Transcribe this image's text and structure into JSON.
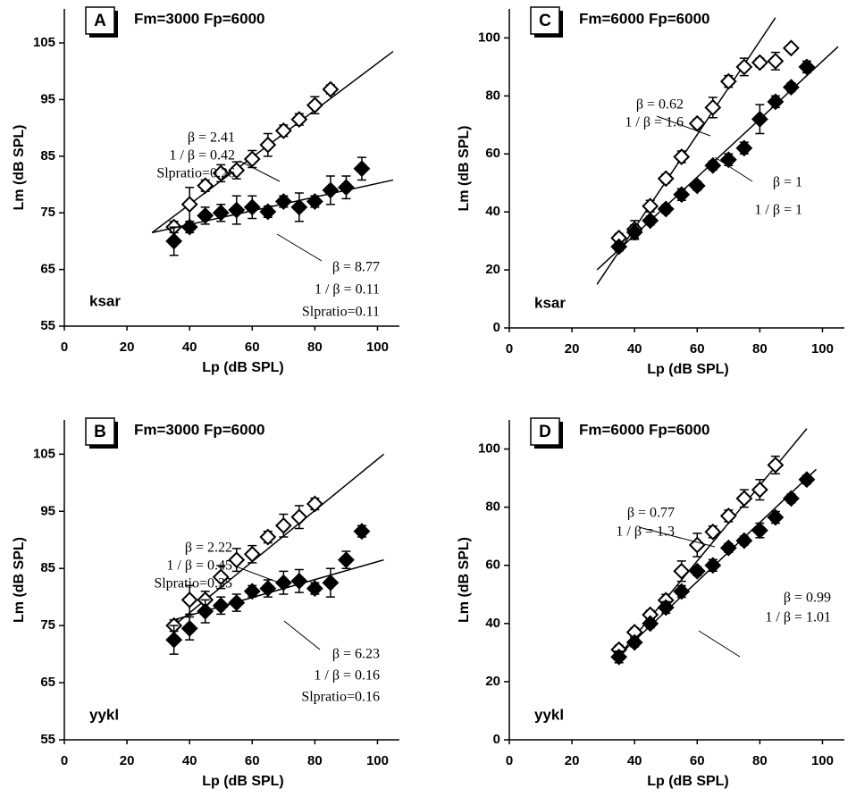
{
  "chart_data": [
    {
      "type": "scatter",
      "panel": "A",
      "title": "Fm=3000 Fp=6000",
      "subject": "ksar",
      "xlabel": "Lp (dB SPL)",
      "ylabel": "Lm (dB SPL)",
      "xlim": [
        0,
        107
      ],
      "ylim": [
        55,
        111
      ],
      "xticks": [
        0,
        20,
        40,
        60,
        80,
        100
      ],
      "yticks": [
        55,
        65,
        75,
        85,
        95,
        105
      ],
      "series": [
        {
          "color": "#000000",
          "fill": "#ffffff",
          "x": [
            35,
            40,
            45,
            50,
            55,
            60,
            65,
            70,
            75,
            80,
            85
          ],
          "values": [
            72.5,
            76.5,
            79.8,
            82,
            82.5,
            84.5,
            87,
            89.5,
            91.5,
            94,
            96.8
          ],
          "errors": [
            1,
            3,
            1,
            1.5,
            1.5,
            1.5,
            2,
            1,
            1,
            1.5,
            0.8
          ],
          "fit": {
            "x": [
              28,
              105
            ],
            "y": [
              71.5,
              103.5
            ]
          },
          "annotation": [
            "β = 2.41",
            "1 / β = 0.42",
            "Slpratio=0.26"
          ]
        },
        {
          "color": "#000000",
          "fill": "#000000",
          "x": [
            35,
            40,
            45,
            50,
            55,
            60,
            65,
            70,
            75,
            80,
            85,
            90,
            95
          ],
          "values": [
            70,
            72.5,
            74.5,
            75,
            75.5,
            76,
            75.2,
            77,
            76,
            77,
            79,
            79.5,
            82.8
          ],
          "errors": [
            2.5,
            1,
            1.5,
            1.5,
            2.5,
            2,
            1,
            1,
            2.5,
            1,
            2.5,
            2,
            2
          ],
          "fit": {
            "x": [
              28,
              105
            ],
            "y": [
              71.5,
              80.8
            ]
          },
          "annotation": [
            "β = 8.77",
            "1 / β = 0.11",
            "Slpratio=0.11"
          ]
        }
      ]
    },
    {
      "type": "scatter",
      "panel": "B",
      "title": "Fm=3000 Fp=6000",
      "subject": "yykl",
      "xlabel": "Lp (dB SPL)",
      "ylabel": "Lm (dB SPL)",
      "xlim": [
        0,
        107
      ],
      "ylim": [
        55,
        111
      ],
      "xticks": [
        0,
        20,
        40,
        60,
        80,
        100
      ],
      "yticks": [
        55,
        65,
        75,
        85,
        95,
        105
      ],
      "series": [
        {
          "color": "#000000",
          "fill": "#ffffff",
          "x": [
            35,
            40,
            45,
            50,
            55,
            60,
            65,
            70,
            75,
            80
          ],
          "values": [
            75,
            79.5,
            79.5,
            83.5,
            86.5,
            87.5,
            90.5,
            92.5,
            94,
            96.3
          ],
          "errors": [
            1,
            2.5,
            1.5,
            2,
            2,
            1.5,
            1,
            2,
            2,
            1
          ],
          "fit": {
            "x": [
              35,
              102
            ],
            "y": [
              75,
              105
            ]
          },
          "annotation": [
            "β = 2.22",
            "1 / β = 0.45",
            "Slpratio=0.35"
          ]
        },
        {
          "color": "#000000",
          "fill": "#000000",
          "x": [
            35,
            40,
            45,
            50,
            55,
            60,
            65,
            70,
            75,
            80,
            85,
            90,
            95
          ],
          "values": [
            72.5,
            74.5,
            77.5,
            78.5,
            79,
            81,
            81.5,
            82.5,
            82.8,
            81.5,
            82.5,
            86.5,
            91.5
          ],
          "errors": [
            2.5,
            2,
            2,
            1.5,
            1.5,
            1,
            1.5,
            2,
            2,
            1,
            2.5,
            1.5,
            1
          ],
          "fit": {
            "x": [
              35,
              102
            ],
            "y": [
              76,
              86.5
            ]
          },
          "annotation": [
            "β = 6.23",
            "1 / β = 0.16",
            "Slpratio=0.16"
          ]
        }
      ]
    },
    {
      "type": "scatter",
      "panel": "C",
      "title": "Fm=6000 Fp=6000",
      "subject": "ksar",
      "xlabel": "Lp (dB SPL)",
      "ylabel": "Lm (dB SPL)",
      "xlim": [
        0,
        107
      ],
      "ylim": [
        0,
        110
      ],
      "xticks": [
        0,
        20,
        40,
        60,
        80,
        100
      ],
      "yticks": [
        0,
        20,
        40,
        60,
        80,
        100
      ],
      "series": [
        {
          "color": "#000000",
          "fill": "#ffffff",
          "x": [
            35,
            40,
            45,
            50,
            55,
            60,
            65,
            70,
            75,
            80,
            85,
            90
          ],
          "values": [
            31,
            34,
            42,
            51.5,
            59,
            70.5,
            76,
            85,
            90,
            91.5,
            92,
            96.5
          ],
          "errors": [
            1.5,
            3,
            2,
            1.5,
            2,
            1.5,
            3.5,
            2,
            3,
            1.5,
            3,
            1
          ],
          "fit": {
            "x": [
              28,
              85
            ],
            "y": [
              15,
              107
            ]
          },
          "annotation": [
            "β = 0.62",
            "1 / β = 1.6"
          ]
        },
        {
          "color": "#000000",
          "fill": "#000000",
          "x": [
            35,
            40,
            45,
            50,
            55,
            60,
            65,
            70,
            75,
            80,
            85,
            90,
            95
          ],
          "values": [
            28,
            33,
            37,
            41,
            46,
            49,
            56,
            58,
            62,
            72,
            78,
            83,
            90
          ],
          "errors": [
            1.5,
            2.5,
            1.5,
            1.5,
            2,
            1.5,
            1.5,
            2,
            2,
            5,
            2,
            1.5,
            2
          ],
          "fit": {
            "x": [
              28,
              105
            ],
            "y": [
              20,
              97
            ]
          },
          "annotation": [
            "β = 1",
            "1 / β = 1"
          ]
        }
      ]
    },
    {
      "type": "scatter",
      "panel": "D",
      "title": "Fm=6000 Fp=6000",
      "subject": "yykl",
      "xlabel": "Lp (dB SPL)",
      "ylabel": "Lm (dB SPL)",
      "xlim": [
        0,
        107
      ],
      "ylim": [
        0,
        110
      ],
      "xticks": [
        0,
        20,
        40,
        60,
        80,
        100
      ],
      "yticks": [
        0,
        20,
        40,
        60,
        80,
        100
      ],
      "series": [
        {
          "color": "#000000",
          "fill": "#ffffff",
          "x": [
            35,
            40,
            45,
            50,
            55,
            60,
            65,
            70,
            75,
            80,
            85
          ],
          "values": [
            31,
            37,
            43,
            48,
            58,
            67,
            71.5,
            77,
            83,
            86,
            94.5
          ],
          "errors": [
            1.5,
            1.5,
            1.5,
            2,
            3.5,
            4,
            2,
            2,
            3,
            3.5,
            3
          ],
          "fit": {
            "x": [
              35,
              95
            ],
            "y": [
              29,
              107
            ]
          },
          "annotation": [
            "β = 0.77",
            "1 / β = 1.3"
          ]
        },
        {
          "color": "#000000",
          "fill": "#000000",
          "x": [
            35,
            40,
            45,
            50,
            55,
            60,
            65,
            70,
            75,
            80,
            85,
            90,
            95
          ],
          "values": [
            28.5,
            33.5,
            40,
            45.5,
            51,
            58,
            60,
            66,
            68.5,
            72,
            76.5,
            83,
            89.5
          ],
          "errors": [
            2,
            1.5,
            1.5,
            2,
            2,
            1.5,
            2,
            1.5,
            1.5,
            2.5,
            2,
            1.5,
            1.5
          ],
          "fit": {
            "x": [
              35,
              98
            ],
            "y": [
              29,
              93
            ]
          },
          "annotation": [
            "β = 0.99",
            "1 / β = 1.01"
          ]
        }
      ]
    }
  ]
}
